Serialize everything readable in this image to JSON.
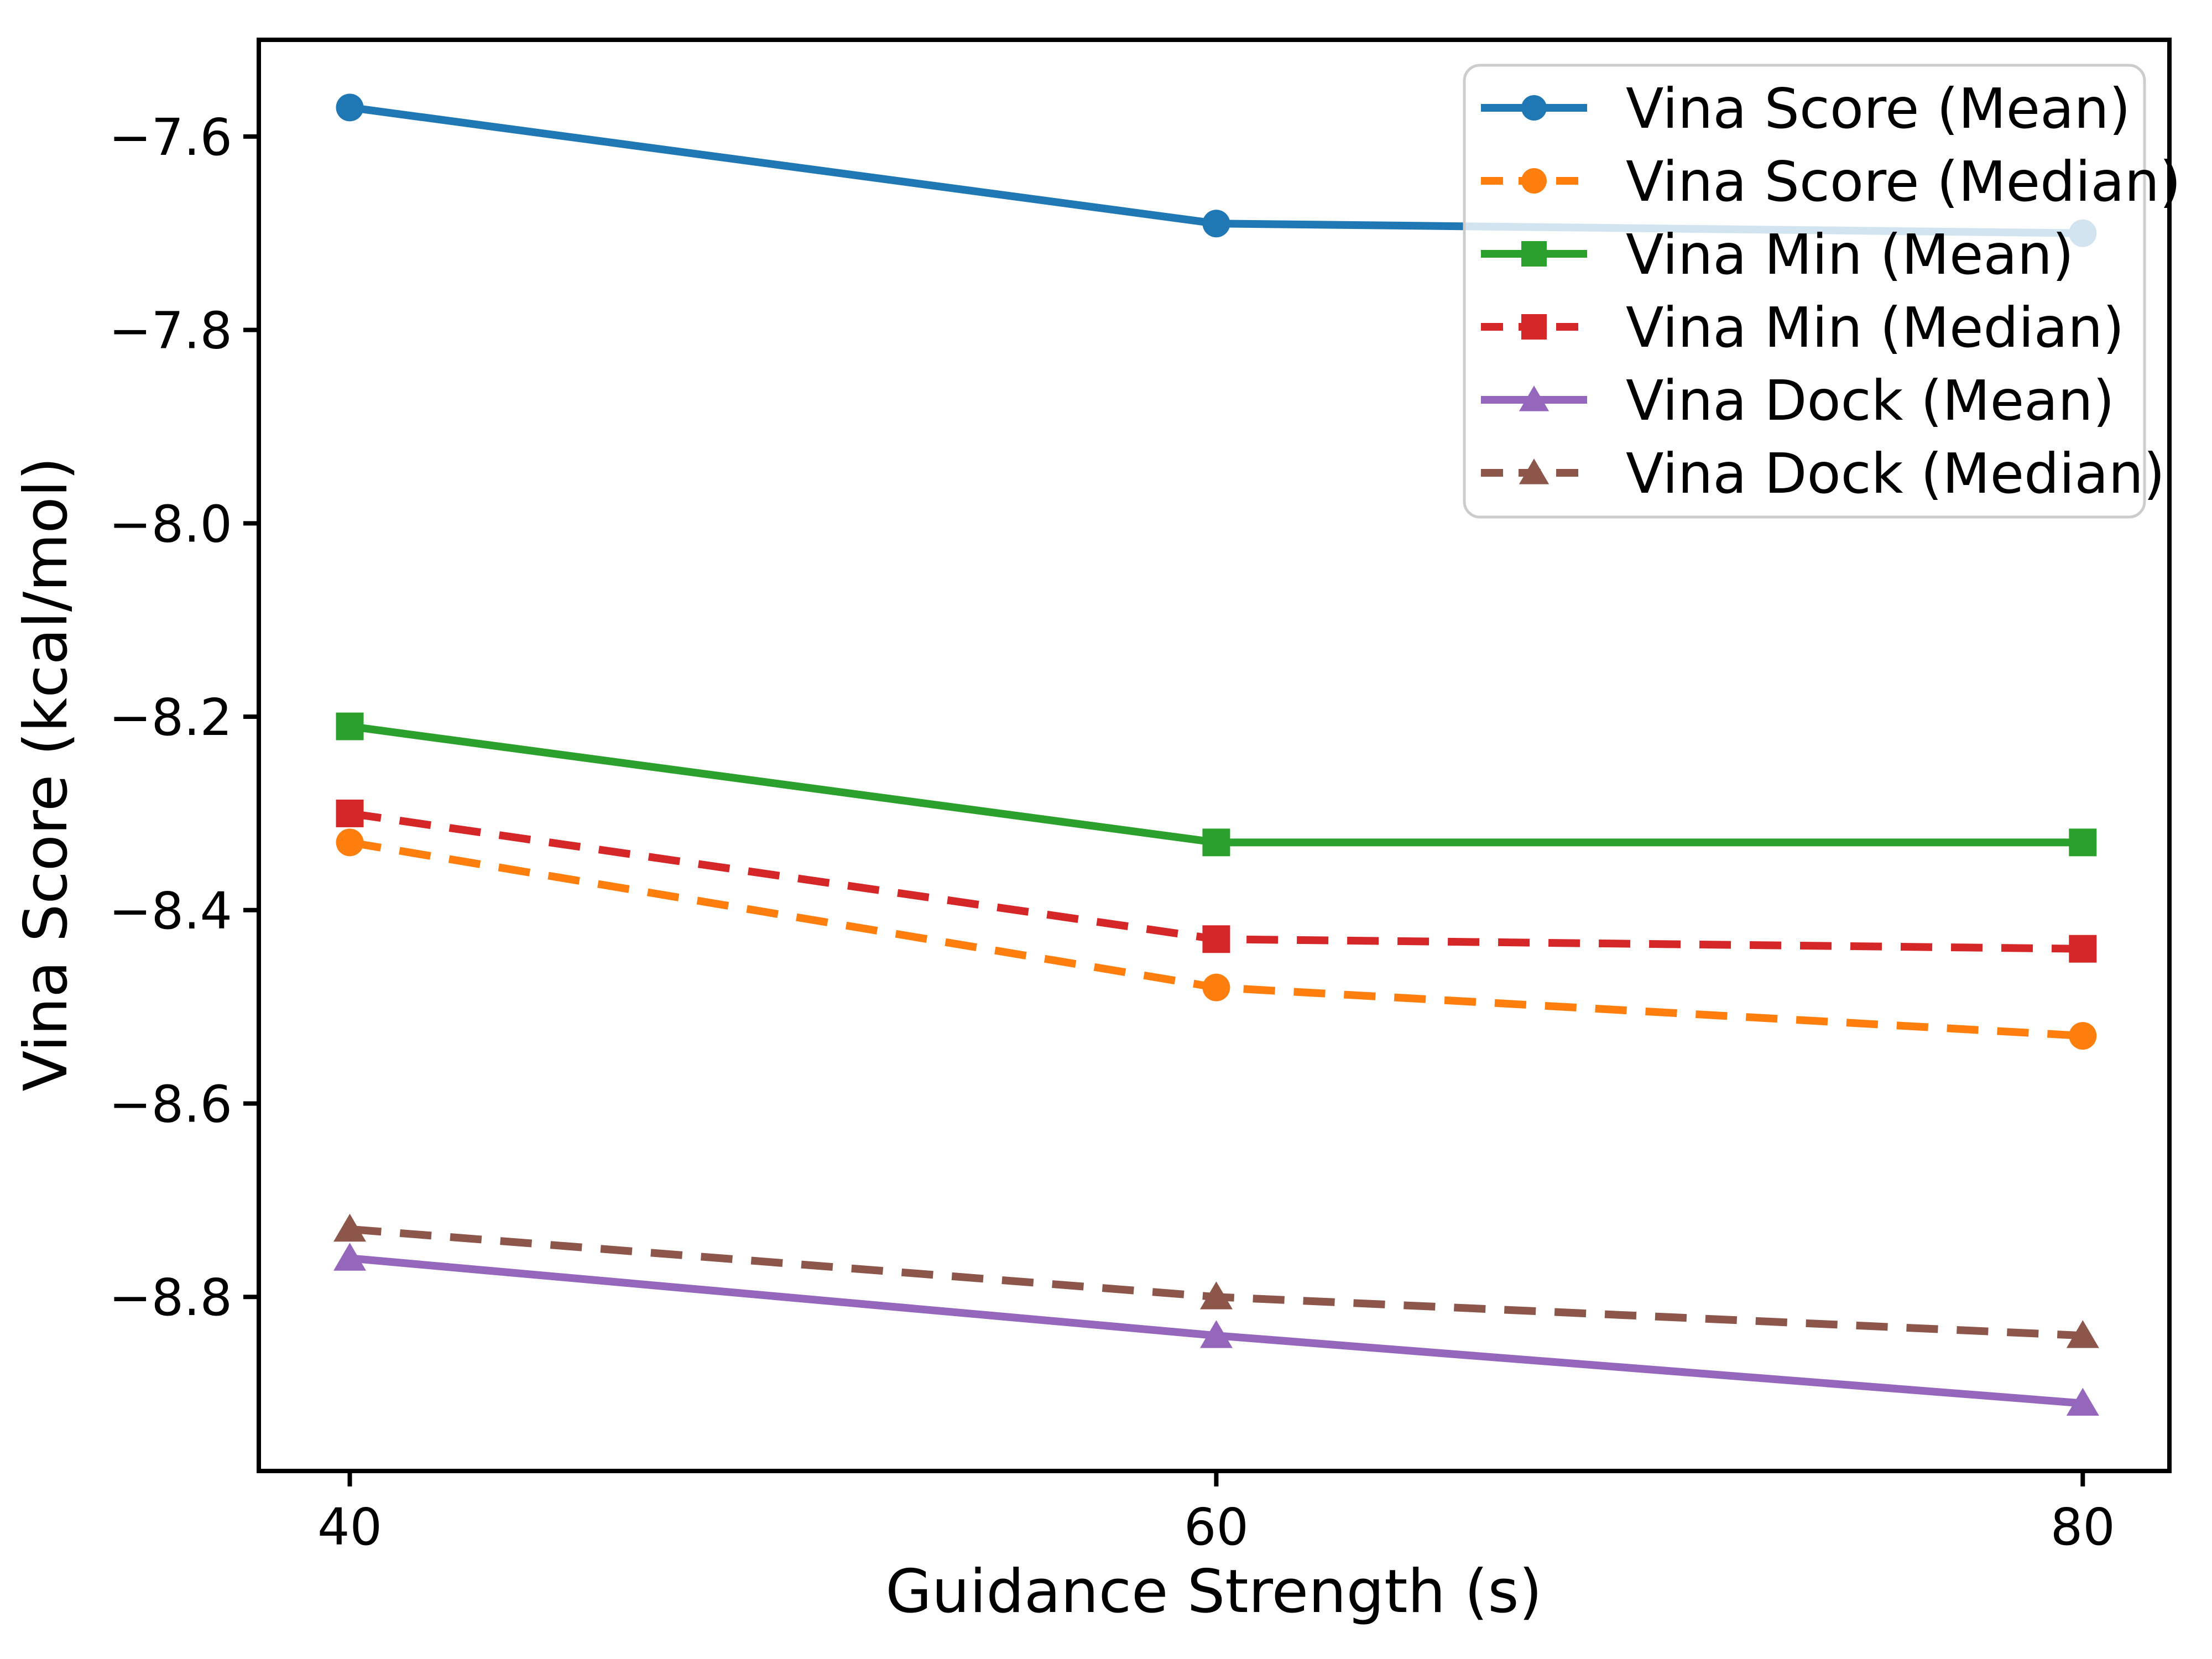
{
  "chart_data": {
    "type": "line",
    "title": "",
    "xlabel": "Guidance Strength (s)",
    "ylabel": "Vina Score (kcal/mol)",
    "x": [
      40,
      60,
      80
    ],
    "xlim": [
      37.9,
      82.0
    ],
    "ylim": [
      -8.98,
      -7.5
    ],
    "grid": false,
    "legend_position": "upper right",
    "legend_border_color": "#cccccc",
    "legend_background": "rgba(255,255,255,0.8)",
    "axis_color": "#000000",
    "xticks": [
      {
        "value": 40,
        "label": "40"
      },
      {
        "value": 60,
        "label": "60"
      },
      {
        "value": 80,
        "label": "80"
      }
    ],
    "yticks": [
      {
        "value": -7.6,
        "label": "−7.6"
      },
      {
        "value": -7.8,
        "label": "−7.8"
      },
      {
        "value": -8.0,
        "label": "−8.0"
      },
      {
        "value": -8.2,
        "label": "−8.2"
      },
      {
        "value": -8.4,
        "label": "−8.4"
      },
      {
        "value": -8.6,
        "label": "−8.6"
      },
      {
        "value": -8.8,
        "label": "−8.8"
      }
    ],
    "series": [
      {
        "name": "Vina Score (Mean)",
        "values": [
          -7.57,
          -7.69,
          -7.7
        ],
        "color": "#1f77b4",
        "marker": "circle",
        "line": "solid"
      },
      {
        "name": "Vina Score (Median)",
        "values": [
          -8.33,
          -8.48,
          -8.53
        ],
        "color": "#ff7f0e",
        "marker": "circle",
        "line": "dashed"
      },
      {
        "name": "Vina Min (Mean)",
        "values": [
          -8.21,
          -8.33,
          -8.33
        ],
        "color": "#2ca02c",
        "marker": "square",
        "line": "solid"
      },
      {
        "name": "Vina Min (Median)",
        "values": [
          -8.3,
          -8.43,
          -8.44
        ],
        "color": "#d62728",
        "marker": "square",
        "line": "dashed"
      },
      {
        "name": "Vina Dock (Mean)",
        "values": [
          -8.76,
          -8.84,
          -8.91
        ],
        "color": "#9467bd",
        "marker": "triangle",
        "line": "solid"
      },
      {
        "name": "Vina Dock (Median)",
        "values": [
          -8.73,
          -8.8,
          -8.84
        ],
        "color": "#8c564b",
        "marker": "triangle",
        "line": "dashed"
      }
    ]
  }
}
